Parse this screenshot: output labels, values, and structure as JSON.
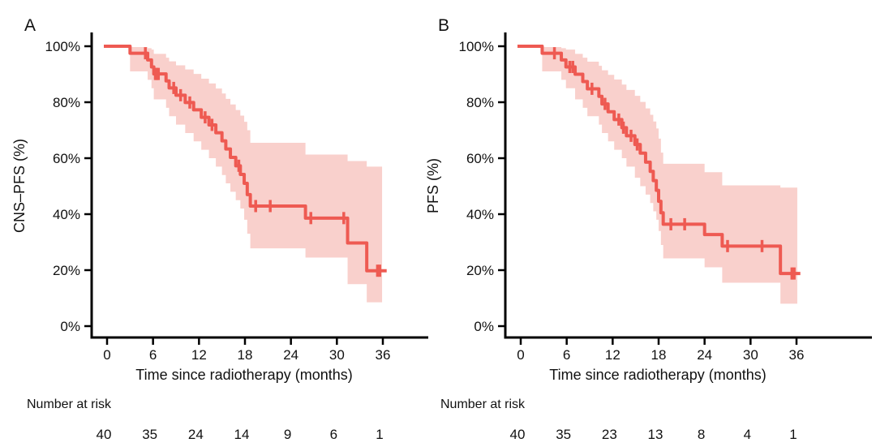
{
  "figure": {
    "background": "#ffffff",
    "colors": {
      "curve": "#ee5a52",
      "band": "#f9d0cc",
      "axis": "#000000",
      "text": "#111111"
    },
    "x_axis_title": "Time since radiotherapy (months)",
    "risk_label": "Number at risk",
    "panels": [
      {
        "label": "A",
        "y_axis_title": "CNS–PFS (%)",
        "y_tick_labels": [
          "0%",
          "20%",
          "40%",
          "60%",
          "80%",
          "100%"
        ],
        "x_tick_labels": [
          "0",
          "6",
          "12",
          "18",
          "24",
          "30",
          "36"
        ],
        "risk_counts": [
          "40",
          "35",
          "24",
          "14",
          "9",
          "6",
          "1"
        ]
      },
      {
        "label": "B",
        "y_axis_title": "PFS (%)",
        "y_tick_labels": [
          "0%",
          "20%",
          "40%",
          "60%",
          "80%",
          "100%"
        ],
        "x_tick_labels": [
          "0",
          "6",
          "12",
          "18",
          "24",
          "30",
          "36"
        ],
        "risk_counts": [
          "40",
          "35",
          "23",
          "13",
          "8",
          "4",
          "1"
        ]
      }
    ]
  },
  "chart_data": [
    {
      "type": "line",
      "subtype": "kaplan-meier",
      "panel": "A",
      "title": "",
      "xlabel": "Time since radiotherapy (months)",
      "ylabel": "CNS–PFS (%)",
      "xlim": [
        0,
        38
      ],
      "ylim": [
        0,
        100
      ],
      "x_ticks": [
        0,
        6,
        12,
        18,
        24,
        30,
        36
      ],
      "y_ticks": [
        0,
        20,
        40,
        60,
        80,
        100
      ],
      "legend": "none",
      "grid": false,
      "steps": [
        [
          0,
          100
        ],
        [
          3.0,
          97.5
        ],
        [
          5.3,
          95.1
        ],
        [
          5.8,
          92.6
        ],
        [
          6.1,
          90.1
        ],
        [
          7.7,
          87.6
        ],
        [
          8.1,
          85.1
        ],
        [
          9.0,
          82.5
        ],
        [
          10.2,
          79.9
        ],
        [
          11.3,
          77.3
        ],
        [
          12.3,
          74.6
        ],
        [
          13.3,
          71.9
        ],
        [
          14.2,
          69.1
        ],
        [
          15.0,
          66.2
        ],
        [
          15.5,
          63.3
        ],
        [
          16.1,
          60.3
        ],
        [
          16.8,
          57.3
        ],
        [
          17.4,
          54.2
        ],
        [
          17.9,
          51.0
        ],
        [
          18.3,
          47.0
        ],
        [
          18.7,
          42.9
        ],
        [
          25.9,
          38.6
        ],
        [
          31.4,
          29.7
        ],
        [
          33.9,
          19.8
        ]
      ],
      "curve_end": 36.5,
      "censors": [
        [
          5.0,
          97.5
        ],
        [
          6.3,
          90.1
        ],
        [
          6.5,
          90.1
        ],
        [
          6.7,
          90.1
        ],
        [
          8.7,
          85.1
        ],
        [
          9.6,
          82.5
        ],
        [
          10.8,
          79.9
        ],
        [
          12.8,
          74.6
        ],
        [
          13.7,
          71.9
        ],
        [
          17.2,
          57.3
        ],
        [
          19.4,
          42.9
        ],
        [
          21.3,
          42.9
        ],
        [
          26.6,
          38.6
        ],
        [
          30.9,
          38.6
        ],
        [
          35.3,
          19.8
        ],
        [
          35.6,
          19.8
        ]
      ],
      "band": [
        [
          3.0,
          91,
          99.7
        ],
        [
          5.3,
          88,
          99.3
        ],
        [
          5.8,
          85,
          98.8
        ],
        [
          6.1,
          81,
          97.3
        ],
        [
          7.7,
          78,
          95.9
        ],
        [
          8.1,
          75,
          94.6
        ],
        [
          9.0,
          72,
          93.2
        ],
        [
          10.2,
          69,
          91.7
        ],
        [
          11.3,
          66,
          90.1
        ],
        [
          12.3,
          63,
          88.4
        ],
        [
          13.3,
          60,
          86.7
        ],
        [
          14.2,
          57,
          84.9
        ],
        [
          15.0,
          54,
          83.1
        ],
        [
          15.5,
          51,
          81.2
        ],
        [
          16.1,
          48,
          79.2
        ],
        [
          16.8,
          45,
          77.2
        ],
        [
          17.4,
          42,
          75.2
        ],
        [
          17.9,
          38,
          73.0
        ],
        [
          18.3,
          33,
          70.0
        ],
        [
          18.7,
          27.8,
          65.5
        ],
        [
          25.9,
          24.5,
          61.3
        ],
        [
          31.4,
          15,
          59.0
        ],
        [
          33.9,
          8.5,
          57.0
        ]
      ],
      "band_end": 35.9,
      "risk_table": {
        "times": [
          0,
          6,
          12,
          18,
          24,
          30,
          36
        ],
        "counts": [
          40,
          35,
          24,
          14,
          9,
          6,
          1
        ]
      }
    },
    {
      "type": "line",
      "subtype": "kaplan-meier",
      "panel": "B",
      "title": "",
      "xlabel": "Time since radiotherapy (months)",
      "ylabel": "PFS (%)",
      "xlim": [
        0,
        38
      ],
      "ylim": [
        0,
        100
      ],
      "x_ticks": [
        0,
        6,
        12,
        18,
        24,
        30,
        36
      ],
      "y_ticks": [
        0,
        20,
        40,
        60,
        80,
        100
      ],
      "legend": "none",
      "grid": false,
      "steps": [
        [
          0,
          100
        ],
        [
          2.8,
          97.5
        ],
        [
          5.3,
          95.1
        ],
        [
          5.9,
          92.6
        ],
        [
          7.1,
          90.0
        ],
        [
          8.1,
          87.4
        ],
        [
          8.7,
          84.8
        ],
        [
          10.2,
          82.1
        ],
        [
          10.6,
          79.4
        ],
        [
          11.4,
          76.6
        ],
        [
          12.2,
          73.8
        ],
        [
          13.2,
          70.9
        ],
        [
          13.8,
          68.0
        ],
        [
          14.9,
          64.9
        ],
        [
          15.6,
          61.8
        ],
        [
          16.3,
          58.6
        ],
        [
          16.9,
          55.3
        ],
        [
          17.3,
          52.0
        ],
        [
          17.7,
          48.5
        ],
        [
          18.0,
          44.6
        ],
        [
          18.3,
          40.5
        ],
        [
          18.6,
          36.4
        ],
        [
          24.0,
          32.7
        ],
        [
          26.3,
          28.6
        ],
        [
          33.9,
          18.8
        ]
      ],
      "curve_end": 36.5,
      "censors": [
        [
          4.4,
          97.5
        ],
        [
          6.4,
          92.6
        ],
        [
          6.8,
          92.6
        ],
        [
          9.3,
          84.8
        ],
        [
          11.0,
          79.4
        ],
        [
          12.8,
          73.8
        ],
        [
          13.4,
          70.9
        ],
        [
          14.4,
          68.0
        ],
        [
          15.2,
          64.9
        ],
        [
          19.6,
          36.4
        ],
        [
          21.4,
          36.4
        ],
        [
          27.0,
          28.6
        ],
        [
          31.5,
          28.6
        ],
        [
          35.4,
          18.8
        ],
        [
          35.7,
          18.8
        ]
      ],
      "band": [
        [
          2.8,
          91,
          99.7
        ],
        [
          5.3,
          88,
          99.3
        ],
        [
          5.9,
          85,
          98.8
        ],
        [
          7.1,
          81,
          97.3
        ],
        [
          8.1,
          78,
          95.9
        ],
        [
          8.7,
          75,
          94.5
        ],
        [
          10.2,
          72,
          93.0
        ],
        [
          10.6,
          69,
          91.4
        ],
        [
          11.4,
          66,
          89.8
        ],
        [
          12.2,
          63,
          88.1
        ],
        [
          13.2,
          60,
          86.3
        ],
        [
          13.8,
          57,
          84.4
        ],
        [
          14.9,
          53,
          82.3
        ],
        [
          15.6,
          50,
          80.1
        ],
        [
          16.3,
          47,
          77.8
        ],
        [
          16.9,
          44,
          75.5
        ],
        [
          17.3,
          41,
          73.1
        ],
        [
          17.7,
          38,
          70.6
        ],
        [
          18.0,
          34,
          67.0
        ],
        [
          18.3,
          29,
          62.0
        ],
        [
          18.6,
          24.2,
          58.0
        ],
        [
          24.0,
          21,
          55.0
        ],
        [
          26.3,
          15.5,
          50.3
        ],
        [
          33.9,
          8,
          49.5
        ]
      ],
      "band_end": 36.1,
      "risk_table": {
        "times": [
          0,
          6,
          12,
          18,
          24,
          30,
          36
        ],
        "counts": [
          40,
          35,
          23,
          13,
          8,
          4,
          1
        ]
      }
    }
  ]
}
